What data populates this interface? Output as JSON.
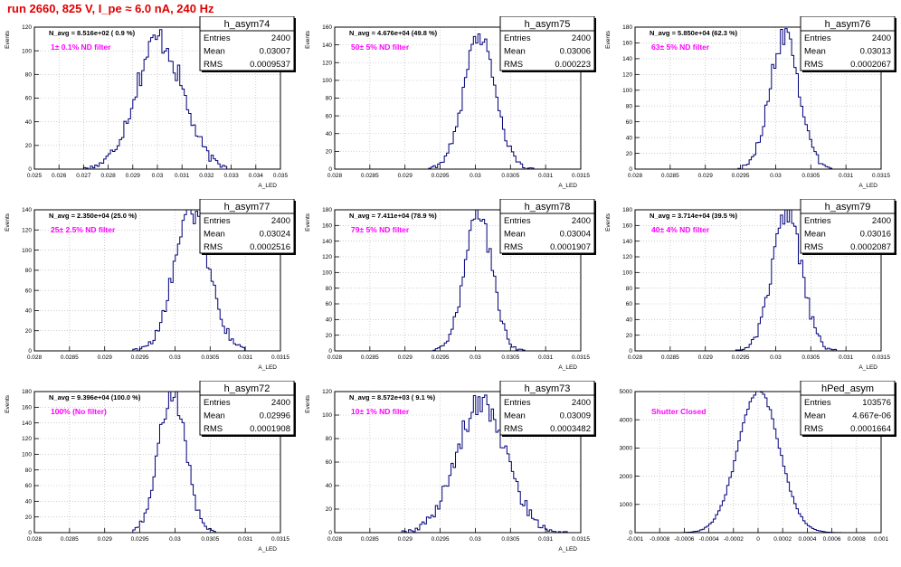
{
  "page_title": "run 2660,   825 V, I_pe ≈ 6.0 nA, 240 Hz",
  "colors": {
    "title": "#e00000",
    "annotation": "#ff00ff",
    "histogram": "#00007a",
    "grid": "#b0b0b0"
  },
  "chart_data": [
    {
      "type": "histogram",
      "name": "h_asym74",
      "stats": [
        [
          "Entries",
          "2400"
        ],
        [
          "Mean",
          "0.03007"
        ],
        [
          "RMS",
          "0.0009537"
        ]
      ],
      "navg": "N_avg = 8.516e+02 ( 0.9 %)",
      "annotation": "1± 0.1% ND filter",
      "xlabel": "A_LED",
      "ylabel": "Events",
      "xlim": [
        0.025,
        0.035
      ],
      "ylim": [
        0,
        120
      ],
      "xticks": [
        "0.025",
        "0.026",
        "0.027",
        "0.028",
        "0.029",
        "0.03",
        "0.031",
        "0.032",
        "0.033",
        "0.034",
        "0.035"
      ],
      "yticks": [
        "0",
        "20",
        "40",
        "60",
        "80",
        "100",
        "120"
      ],
      "mean": 0.03007,
      "rms": 0.00095,
      "peak": 110,
      "bins": 110
    },
    {
      "type": "histogram",
      "name": "h_asym75",
      "stats": [
        [
          "Entries",
          "2400"
        ],
        [
          "Mean",
          "0.03006"
        ],
        [
          "RMS",
          "0.000223"
        ]
      ],
      "navg": "N_avg = 4.676e+04 (49.8 %)",
      "annotation": "50± 5% ND filter",
      "xlabel": "A_LED",
      "ylabel": "Events",
      "xlim": [
        0.028,
        0.0315
      ],
      "ylim": [
        0,
        160
      ],
      "xticks": [
        "0.028",
        "0.0285",
        "0.029",
        "0.0295",
        "0.03",
        "0.0305",
        "0.031",
        "0.0315"
      ],
      "yticks": [
        "0",
        "20",
        "40",
        "60",
        "80",
        "100",
        "120",
        "140",
        "160"
      ],
      "mean": 0.03006,
      "rms": 0.000223,
      "peak": 152,
      "bins": 110
    },
    {
      "type": "histogram",
      "name": "h_asym76",
      "stats": [
        [
          "Entries",
          "2400"
        ],
        [
          "Mean",
          "0.03013"
        ],
        [
          "RMS",
          "0.0002067"
        ]
      ],
      "navg": "N_avg = 5.850e+04 (62.3 %)",
      "annotation": "63± 5% ND filter",
      "xlabel": "A_LED",
      "ylabel": "Events",
      "xlim": [
        0.028,
        0.0315
      ],
      "ylim": [
        0,
        180
      ],
      "xticks": [
        "0.028",
        "0.0285",
        "0.029",
        "0.0295",
        "0.03",
        "0.0305",
        "0.031",
        "0.0315"
      ],
      "yticks": [
        "0",
        "20",
        "40",
        "60",
        "80",
        "100",
        "120",
        "140",
        "160",
        "180"
      ],
      "mean": 0.03013,
      "rms": 0.0002067,
      "peak": 172,
      "bins": 110
    },
    {
      "type": "histogram",
      "name": "h_asym77",
      "stats": [
        [
          "Entries",
          "2400"
        ],
        [
          "Mean",
          "0.03024"
        ],
        [
          "RMS",
          "0.0002516"
        ]
      ],
      "navg": "N_avg = 2.350e+04 (25.0 %)",
      "annotation": "25± 2.5% ND filter",
      "xlabel": "A_LED",
      "ylabel": "Events",
      "xlim": [
        0.028,
        0.0315
      ],
      "ylim": [
        0,
        140
      ],
      "xticks": [
        "0.028",
        "0.0285",
        "0.029",
        "0.0295",
        "0.03",
        "0.0305",
        "0.031",
        "0.0315"
      ],
      "yticks": [
        "0",
        "20",
        "40",
        "60",
        "80",
        "100",
        "120",
        "140"
      ],
      "mean": 0.03024,
      "rms": 0.0002516,
      "peak": 138,
      "bins": 110
    },
    {
      "type": "histogram",
      "name": "h_asym78",
      "stats": [
        [
          "Entries",
          "2400"
        ],
        [
          "Mean",
          "0.03004"
        ],
        [
          "RMS",
          "0.0001907"
        ]
      ],
      "navg": "N_avg = 7.411e+04 (78.9 %)",
      "annotation": "79± 5% ND filter",
      "xlabel": "A_LED",
      "ylabel": "Events",
      "xlim": [
        0.028,
        0.0315
      ],
      "ylim": [
        0,
        180
      ],
      "xticks": [
        "0.028",
        "0.0285",
        "0.029",
        "0.0295",
        "0.03",
        "0.0305",
        "0.031",
        "0.0315"
      ],
      "yticks": [
        "0",
        "20",
        "40",
        "60",
        "80",
        "100",
        "120",
        "140",
        "160",
        "180"
      ],
      "mean": 0.03004,
      "rms": 0.0001907,
      "peak": 182,
      "bins": 110
    },
    {
      "type": "histogram",
      "name": "h_asym79",
      "stats": [
        [
          "Entries",
          "2400"
        ],
        [
          "Mean",
          "0.03016"
        ],
        [
          "RMS",
          "0.0002087"
        ]
      ],
      "navg": "N_avg = 3.714e+04 (39.5 %)",
      "annotation": "40± 4% ND filter",
      "xlabel": "A_LED",
      "ylabel": "Events",
      "xlim": [
        0.028,
        0.0315
      ],
      "ylim": [
        0,
        180
      ],
      "xticks": [
        "0.028",
        "0.0285",
        "0.029",
        "0.0295",
        "0.03",
        "0.0305",
        "0.031",
        "0.0315"
      ],
      "yticks": [
        "0",
        "20",
        "40",
        "60",
        "80",
        "100",
        "120",
        "140",
        "160",
        "180"
      ],
      "mean": 0.03016,
      "rms": 0.0002087,
      "peak": 175,
      "bins": 110
    },
    {
      "type": "histogram",
      "name": "h_asym72",
      "stats": [
        [
          "Entries",
          "2400"
        ],
        [
          "Mean",
          "0.02996"
        ],
        [
          "RMS",
          "0.0001908"
        ]
      ],
      "navg": "N_avg = 9.396e+04 (100.0 %)",
      "annotation": "100% (No filter)",
      "xlabel": "A_LED",
      "ylabel": "Events",
      "xlim": [
        0.028,
        0.0315
      ],
      "ylim": [
        0,
        180
      ],
      "xticks": [
        "0.028",
        "0.0285",
        "0.029",
        "0.0295",
        "0.03",
        "0.0305",
        "0.031",
        "0.0315"
      ],
      "yticks": [
        "0",
        "20",
        "40",
        "60",
        "80",
        "100",
        "120",
        "140",
        "160",
        "180"
      ],
      "mean": 0.02996,
      "rms": 0.0001908,
      "peak": 180,
      "bins": 110
    },
    {
      "type": "histogram",
      "name": "h_asym73",
      "stats": [
        [
          "Entries",
          "2400"
        ],
        [
          "Mean",
          "0.03009"
        ],
        [
          "RMS",
          "0.0003482"
        ]
      ],
      "navg": "N_avg = 8.572e+03 ( 9.1 %)",
      "annotation": "10± 1% ND filter",
      "xlabel": "A_LED",
      "ylabel": "Events",
      "xlim": [
        0.028,
        0.0315
      ],
      "ylim": [
        0,
        120
      ],
      "xticks": [
        "0.028",
        "0.0285",
        "0.029",
        "0.0295",
        "0.03",
        "0.0305",
        "0.031",
        "0.0315"
      ],
      "yticks": [
        "0",
        "20",
        "40",
        "60",
        "80",
        "100",
        "120"
      ],
      "mean": 0.03009,
      "rms": 0.0003482,
      "peak": 112,
      "bins": 110
    },
    {
      "type": "histogram",
      "name": "hPed_asym",
      "stats": [
        [
          "Entries",
          "103576"
        ],
        [
          "Mean",
          "4.667e-06"
        ],
        [
          "RMS",
          "0.0001664"
        ]
      ],
      "navg": "",
      "annotation": "Shutter Closed",
      "xlabel": "",
      "ylabel": "",
      "xlim": [
        -0.001,
        0.001
      ],
      "ylim": [
        0,
        5000
      ],
      "xticks": [
        "-0.001",
        "-0.0008",
        "-0.0006",
        "-0.0004",
        "-0.0002",
        "0",
        "0.0002",
        "0.0004",
        "0.0006",
        "0.0008",
        "0.001"
      ],
      "yticks": [
        "0",
        "1000",
        "2000",
        "3000",
        "4000",
        "5000"
      ],
      "mean": 4.667e-06,
      "rms": 0.0001664,
      "peak": 5050,
      "bins": 110
    }
  ]
}
